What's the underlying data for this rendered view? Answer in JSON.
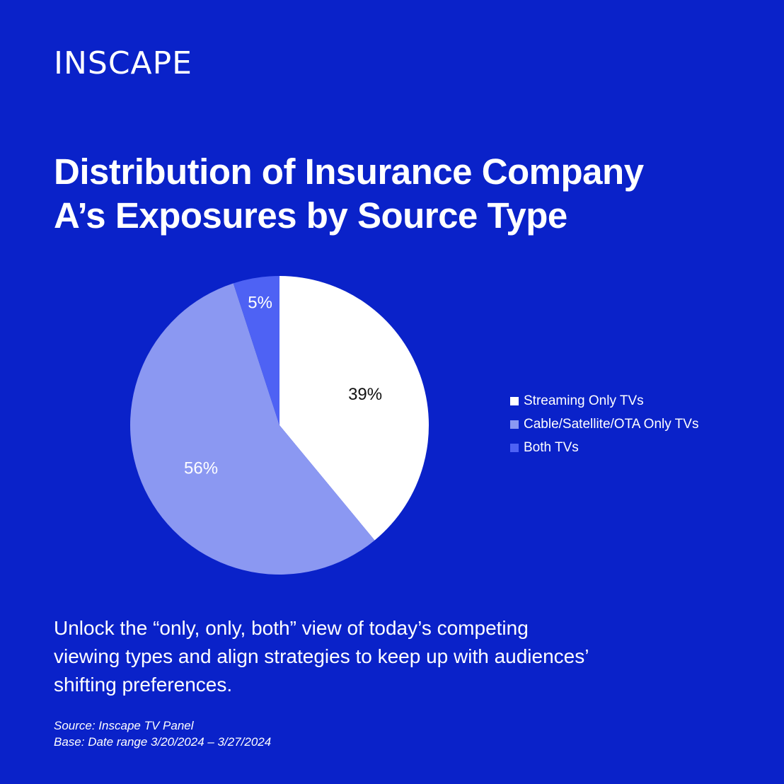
{
  "colors": {
    "background": "#0A22C9",
    "text": "#FFFFFF"
  },
  "logo": {
    "text": "INSCAPE"
  },
  "title": {
    "line1": "Distribution of Insurance Company",
    "line2": "A’s Exposures by Source Type"
  },
  "chart_data": {
    "type": "pie",
    "title": "Distribution of Insurance Company A’s Exposures by Source Type",
    "start_angle_deg": 0,
    "direction": "clockwise",
    "legend_position": "right",
    "slices": [
      {
        "name": "Streaming Only TVs",
        "value": 39,
        "label": "39%",
        "color": "#FFFFFF",
        "label_color": "#111111"
      },
      {
        "name": "Cable/Satellite/OTA Only TVs",
        "value": 56,
        "label": "56%",
        "color": "#8B98F2",
        "label_color": "#FFFFFF"
      },
      {
        "name": "Both TVs",
        "value": 5,
        "label": "5%",
        "color": "#4E62F4",
        "label_color": "#FFFFFF"
      }
    ]
  },
  "body": {
    "line1": "Unlock the “only, only, both” view of today’s competing",
    "line2": "viewing types and align strategies to keep up with audiences’",
    "line3": "shifting preferences."
  },
  "footnote": {
    "source": "Source: Inscape TV Panel",
    "base": "Base: Date range 3/20/2024 – 3/27/2024"
  }
}
